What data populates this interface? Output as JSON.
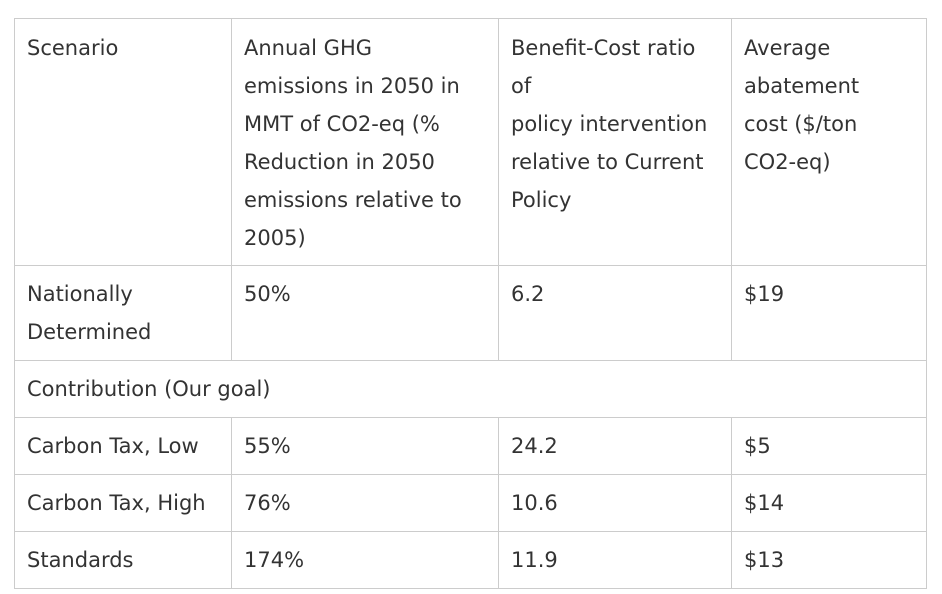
{
  "table": {
    "headers": [
      "Scenario",
      "Annual GHG\nemissions in 2050 in\nMMT of CO2-eq (%\nReduction in 2050\nemissions relative to\n2005)",
      "Benefit-Cost ratio\nof\npolicy intervention\nrelative to Current\nPolicy",
      "Average\nabatement\ncost ($/ton\nCO2-eq)"
    ],
    "rows": [
      [
        "Nationally\nDetermined",
        "50%",
        "6.2",
        "$19"
      ],
      [
        "Contribution (Our goal)"
      ],
      [
        "Carbon Tax, Low",
        "55%",
        "24.2",
        "$5"
      ],
      [
        "Carbon Tax, High",
        "76%",
        "10.6",
        "$14"
      ],
      [
        "Standards",
        "174%",
        "11.9",
        "$13"
      ]
    ]
  }
}
